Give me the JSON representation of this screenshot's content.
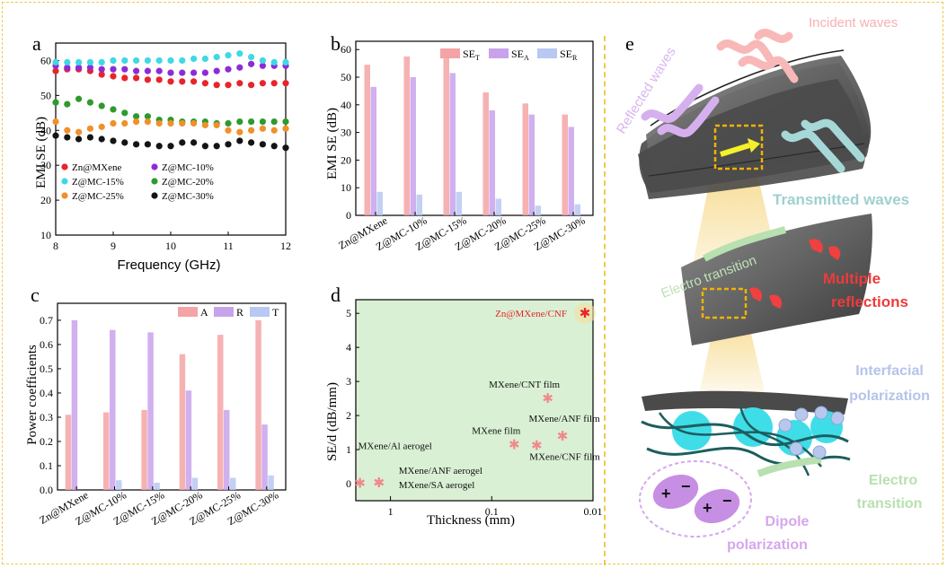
{
  "panels": {
    "a": "a",
    "b": "b",
    "c": "c",
    "d": "d",
    "e": "e"
  },
  "chart_data": [
    {
      "panel": "a",
      "type": "scatter",
      "xlabel": "Frequency (GHz)",
      "ylabel": "EMI SE (dB)",
      "xlim": [
        8,
        12
      ],
      "ylim": [
        10,
        65
      ],
      "xticks": [
        8,
        9,
        10,
        11,
        12
      ],
      "yticks": [
        10,
        20,
        30,
        40,
        50,
        60
      ],
      "grid": false,
      "legend_position": "center-left",
      "x": [
        8.0,
        8.2,
        8.4,
        8.6,
        8.8,
        9.0,
        9.2,
        9.4,
        9.6,
        9.8,
        10.0,
        10.2,
        10.4,
        10.6,
        10.8,
        11.0,
        11.2,
        11.4,
        11.6,
        11.8,
        12.0
      ],
      "series": [
        {
          "name": "Zn@MXene",
          "color": "#e8242b",
          "values": [
            57.0,
            57.5,
            57.5,
            57.0,
            56.0,
            55.5,
            55.0,
            55.0,
            54.5,
            54.5,
            54.0,
            54.0,
            54.0,
            53.5,
            53.0,
            53.0,
            53.5,
            53.0,
            53.5,
            53.5,
            53.5
          ]
        },
        {
          "name": "Z@MC-10%",
          "color": "#8e2bd6",
          "values": [
            58.5,
            58.0,
            58.0,
            58.0,
            57.5,
            57.5,
            57.5,
            57.0,
            57.0,
            57.0,
            56.5,
            56.5,
            56.5,
            56.5,
            57.0,
            57.5,
            58.0,
            59.0,
            58.5,
            58.5,
            58.5
          ]
        },
        {
          "name": "Z@MC-15%",
          "color": "#3fd8e6",
          "values": [
            59.5,
            59.5,
            59.5,
            59.5,
            59.5,
            60.0,
            60.0,
            60.0,
            60.0,
            60.0,
            60.0,
            60.0,
            60.5,
            60.5,
            61.0,
            61.5,
            62.0,
            61.0,
            60.0,
            59.5,
            59.5
          ]
        },
        {
          "name": "Z@MC-20%",
          "color": "#2e9a2e",
          "values": [
            48.0,
            47.5,
            49.0,
            48.0,
            47.0,
            46.0,
            45.0,
            44.0,
            44.0,
            43.0,
            43.0,
            42.5,
            42.5,
            42.5,
            42.0,
            42.0,
            42.5,
            42.5,
            42.5,
            42.5,
            42.5
          ]
        },
        {
          "name": "Z@MC-25%",
          "color": "#f0902a",
          "values": [
            42.5,
            40.0,
            39.5,
            40.5,
            41.0,
            42.0,
            42.0,
            42.5,
            42.5,
            42.0,
            42.0,
            42.0,
            42.0,
            41.5,
            41.5,
            40.0,
            39.5,
            40.0,
            40.5,
            40.0,
            40.5
          ]
        },
        {
          "name": "Z@MC-30%",
          "color": "#141414",
          "values": [
            38.5,
            38.0,
            37.5,
            38.0,
            37.5,
            37.0,
            36.5,
            36.0,
            36.0,
            35.5,
            35.5,
            36.5,
            36.5,
            35.5,
            35.5,
            36.0,
            37.0,
            36.5,
            36.0,
            35.5,
            35.0
          ]
        }
      ]
    },
    {
      "panel": "b",
      "type": "bar",
      "ylabel": "EMI SE (dB)",
      "ylim": [
        0,
        63
      ],
      "yticks": [
        0,
        10,
        20,
        30,
        40,
        50,
        60
      ],
      "legend_position": "top-right",
      "categories": [
        "Zn@MXene",
        "Z@MC-10%",
        "Z@MC-15%",
        "Z@MC-20%",
        "Z@MC-25%",
        "Z@MC-30%"
      ],
      "series": [
        {
          "name": "SE",
          "sub": "T",
          "color": "#f4a4a4",
          "values": [
            54.5,
            57.5,
            58.0,
            44.5,
            40.5,
            36.5
          ]
        },
        {
          "name": "SE",
          "sub": "A",
          "color": "#c9a2ec",
          "values": [
            46.5,
            50.0,
            51.5,
            38.0,
            36.5,
            32.0
          ]
        },
        {
          "name": "SE",
          "sub": "R",
          "color": "#b8c8f2",
          "values": [
            8.5,
            7.5,
            8.5,
            6.0,
            3.5,
            4.0
          ]
        }
      ]
    },
    {
      "panel": "c",
      "type": "bar",
      "ylabel": "Power coefficients",
      "ylim": [
        0,
        0.77
      ],
      "yticks": [
        0.0,
        0.1,
        0.2,
        0.3,
        0.4,
        0.5,
        0.6,
        0.7
      ],
      "legend_position": "top-right",
      "categories": [
        "Zn@MXene",
        "Z@MC-10%",
        "Z@MC-15%",
        "Z@MC-20%",
        "Z@MC-25%",
        "Z@MC-30%"
      ],
      "series": [
        {
          "name": "A",
          "color": "#f4a4a4",
          "values": [
            0.31,
            0.32,
            0.33,
            0.56,
            0.64,
            0.7
          ]
        },
        {
          "name": "R",
          "color": "#c9a2ec",
          "values": [
            0.7,
            0.66,
            0.65,
            0.41,
            0.33,
            0.27
          ]
        },
        {
          "name": "T",
          "color": "#b8c8f2",
          "values": [
            0.0,
            0.04,
            0.03,
            0.05,
            0.05,
            0.06
          ]
        }
      ]
    },
    {
      "panel": "d",
      "type": "scatter",
      "xlabel": "Thickness (mm)",
      "ylabel": "SE/d (dB/mm)",
      "xscale": "log",
      "xaxis_reversed": true,
      "xlim": [
        2.2,
        0.01
      ],
      "xticks": [
        1,
        0.1,
        0.01
      ],
      "ylim": [
        -0.5,
        5.4
      ],
      "yticks": [
        0,
        1,
        2,
        3,
        4,
        5
      ],
      "background": "#d9f0d4",
      "points": [
        {
          "label": "MXene/Al aerogel",
          "x": 2.0,
          "y": 0.02,
          "color": "#f08a8a"
        },
        {
          "label": "MXene/SA aerogel",
          "x": 1.3,
          "y": 0.03,
          "color": "#f08a8a"
        },
        {
          "label": "MXene/ANF aerogel",
          "x": 1.3,
          "y": 0.03,
          "color": "#f08a8a"
        },
        {
          "label": "MXene film",
          "x": 0.06,
          "y": 1.15,
          "color": "#f08a8a"
        },
        {
          "label": "MXene/CNF film",
          "x": 0.036,
          "y": 1.12,
          "color": "#f08a8a"
        },
        {
          "label": "MXene/ANF film",
          "x": 0.02,
          "y": 1.4,
          "color": "#f08a8a"
        },
        {
          "label": "MXene/CNT film",
          "x": 0.028,
          "y": 2.5,
          "color": "#f08a8a"
        },
        {
          "label": "Zn@MXene/CNF",
          "x": 0.012,
          "y": 5.0,
          "color": "#e8242b",
          "highlight": true
        }
      ]
    }
  ],
  "schematic": {
    "panel": "e",
    "labels": {
      "incident": "Incident waves",
      "reflected": "Reflected waves",
      "transmitted": "Transmitted waves",
      "electro1": "Electro transition",
      "multiple_1": "Multiple",
      "multiple_2": "reflections",
      "interfacial_1": "Interfacial",
      "interfacial_2": "polarization",
      "electro2_1": "Electro",
      "electro2_2": "transition",
      "dipole_1": "Dipole",
      "dipole_2": "polarization"
    },
    "colors": {
      "incident": "#f8b8b8",
      "reflected": "#d6b0ee",
      "transmitted": "#a6d8d8",
      "electro": "#b8e0b0",
      "multiple": "#f04040",
      "interfacial": "#b8c8ec",
      "dipole": "#d6a6ec"
    }
  }
}
